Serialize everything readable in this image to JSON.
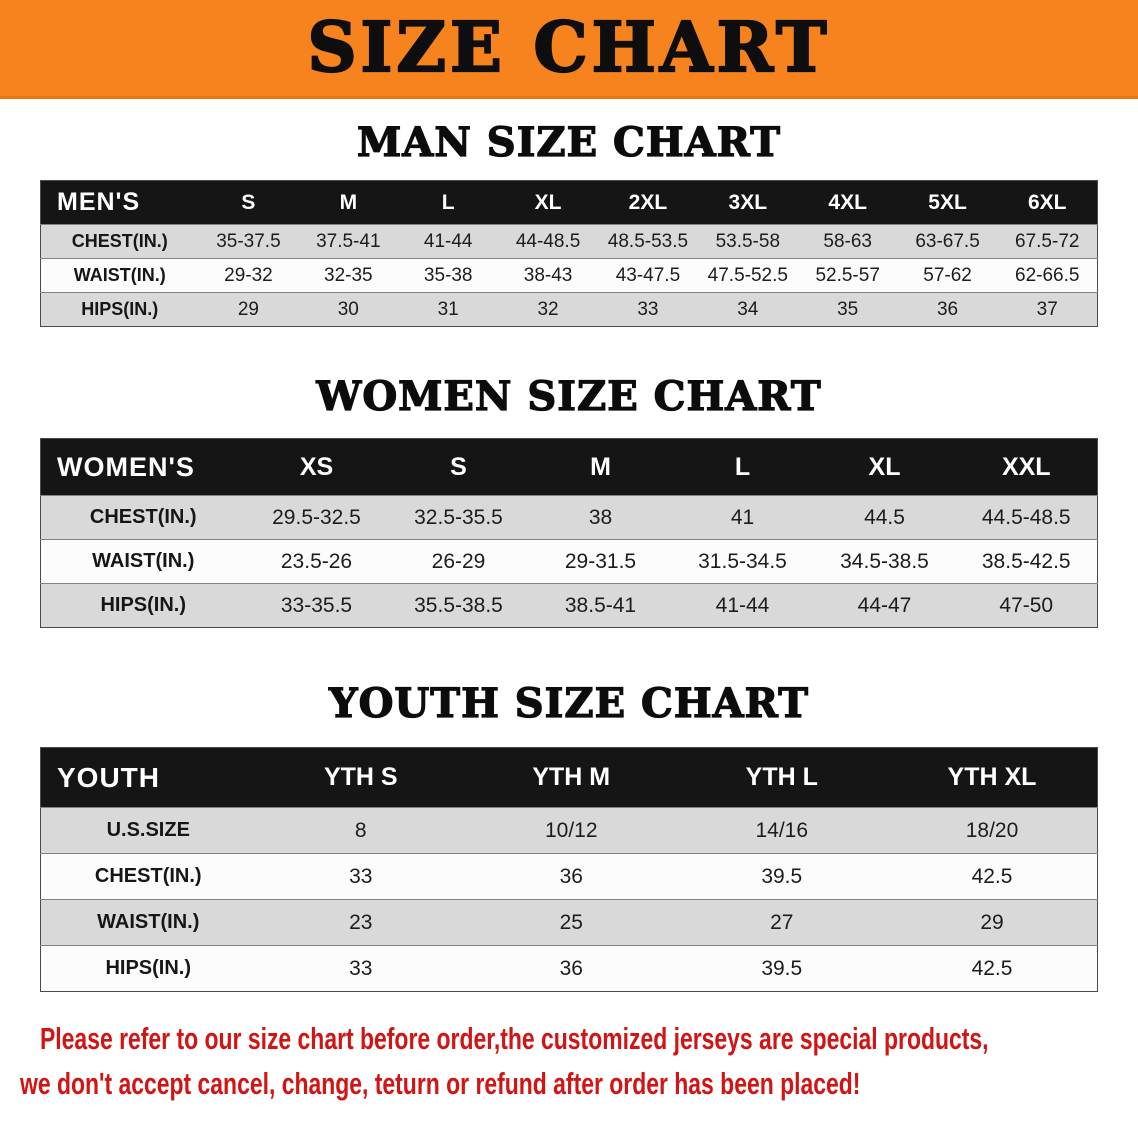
{
  "banner": {
    "title": "SIZE CHART"
  },
  "colors": {
    "banner_orange": "#F6831D",
    "table_header_black": "#151515",
    "row_alt_gray": "#D9D9D9",
    "disclaimer_red": "#D11414"
  },
  "sections": [
    {
      "id": "men",
      "heading": "MAN SIZE CHART",
      "table": {
        "header": [
          "MEN'S",
          "S",
          "M",
          "L",
          "XL",
          "2XL",
          "3XL",
          "4XL",
          "5XL",
          "6XL"
        ],
        "rows": [
          {
            "label": "CHEST(IN.)",
            "values": [
              "35-37.5",
              "37.5-41",
              "41-44",
              "44-48.5",
              "48.5-53.5",
              "53.5-58",
              "58-63",
              "63-67.5",
              "67.5-72"
            ]
          },
          {
            "label": "WAIST(IN.)",
            "values": [
              "29-32",
              "32-35",
              "35-38",
              "38-43",
              "43-47.5",
              "47.5-52.5",
              "52.5-57",
              "57-62",
              "62-66.5"
            ]
          },
          {
            "label": "HIPS(IN.)",
            "values": [
              "29",
              "30",
              "31",
              "32",
              "33",
              "34",
              "35",
              "36",
              "37"
            ]
          }
        ]
      }
    },
    {
      "id": "women",
      "heading": "WOMEN SIZE CHART",
      "table": {
        "header": [
          "WOMEN'S",
          "XS",
          "S",
          "M",
          "L",
          "XL",
          "XXL"
        ],
        "rows": [
          {
            "label": "CHEST(IN.)",
            "values": [
              "29.5-32.5",
              "32.5-35.5",
              "38",
              "41",
              "44.5",
              "44.5-48.5"
            ]
          },
          {
            "label": "WAIST(IN.)",
            "values": [
              "23.5-26",
              "26-29",
              "29-31.5",
              "31.5-34.5",
              "34.5-38.5",
              "38.5-42.5"
            ]
          },
          {
            "label": "HIPS(IN.)",
            "values": [
              "33-35.5",
              "35.5-38.5",
              "38.5-41",
              "41-44",
              "44-47",
              "47-50"
            ]
          }
        ]
      }
    },
    {
      "id": "youth",
      "heading": "YOUTH SIZE CHART",
      "table": {
        "header": [
          "YOUTH",
          "YTH S",
          "YTH M",
          "YTH L",
          "YTH XL"
        ],
        "rows": [
          {
            "label": "U.S.SIZE",
            "values": [
              "8",
              "10/12",
              "14/16",
              "18/20"
            ]
          },
          {
            "label": "CHEST(IN.)",
            "values": [
              "33",
              "36",
              "39.5",
              "42.5"
            ]
          },
          {
            "label": "WAIST(IN.)",
            "values": [
              "23",
              "25",
              "27",
              "29"
            ]
          },
          {
            "label": "HIPS(IN.)",
            "values": [
              "33",
              "36",
              "39.5",
              "42.5"
            ]
          }
        ]
      }
    }
  ],
  "disclaimer": {
    "line1": "Please refer to our size chart before order,the customized jerseys are special products,",
    "line2": "we don't accept cancel, change, teturn or refund after order has been placed!"
  }
}
